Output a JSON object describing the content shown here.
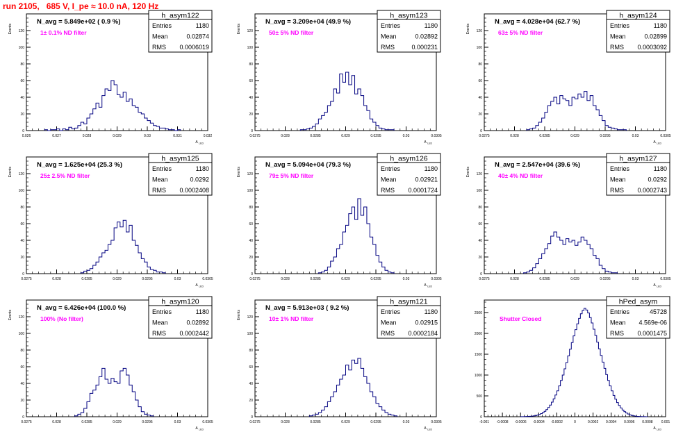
{
  "run_title": "run 2105,   685 V, I_pe ≈ 10.0 nA, 120 Hz",
  "colors": {
    "title": "#ff0000",
    "hist": "#000080",
    "annotation": "#ff00ff",
    "frame": "#000000"
  },
  "stats_labels": {
    "entries": "Entries",
    "mean": "Mean",
    "rms": "RMS"
  },
  "chart_data": [
    {
      "type": "bar",
      "name": "h_asym122",
      "xlabel": "A_LED",
      "ylabel": "Events",
      "xlim": [
        0.026,
        0.032
      ],
      "ylim": [
        0,
        140
      ],
      "xticks": [
        "0.026",
        "0.027",
        "0.028",
        "0.029",
        "0.03",
        "0.031",
        "0.032"
      ],
      "yticks": [
        "0",
        "20",
        "40",
        "60",
        "80",
        "100",
        "120"
      ],
      "nAvg": "N_avg = 5.849e+02 ( 0.9 %)",
      "filter": "1± 0.1% ND filter",
      "entries": "1180",
      "mean": "0.02874",
      "rms": "0.0006019",
      "bins_start": 0.0266,
      "bin_width": 0.0001,
      "values": [
        1,
        0,
        1,
        1,
        2,
        0,
        2,
        1,
        4,
        2,
        3,
        6,
        10,
        8,
        15,
        20,
        26,
        33,
        28,
        42,
        50,
        48,
        60,
        55,
        43,
        40,
        46,
        35,
        38,
        30,
        28,
        22,
        20,
        15,
        12,
        9,
        6,
        5,
        3,
        3,
        2,
        1,
        1,
        0,
        1
      ]
    },
    {
      "type": "bar",
      "name": "h_asym123",
      "xlabel": "A_LED",
      "ylabel": "Events",
      "xlim": [
        0.0275,
        0.0305
      ],
      "ylim": [
        0,
        140
      ],
      "xticks": [
        "0.0275",
        "0.028",
        "0.0285",
        "0.029",
        "0.0295",
        "0.03",
        "0.0305"
      ],
      "yticks": [
        "0",
        "20",
        "40",
        "60",
        "80",
        "100",
        "120"
      ],
      "nAvg": "N_avg = 3.209e+04 (49.9 %)",
      "filter": "50± 5% ND filter",
      "entries": "1180",
      "mean": "0.02892",
      "rms": "0.000231",
      "bins_start": 0.02825,
      "bin_width": 5e-05,
      "values": [
        1,
        1,
        2,
        3,
        5,
        8,
        14,
        18,
        22,
        30,
        35,
        50,
        45,
        68,
        58,
        70,
        55,
        66,
        44,
        50,
        42,
        30,
        24,
        14,
        10,
        6,
        3,
        2,
        1,
        1,
        1
      ]
    },
    {
      "type": "bar",
      "name": "h_asym124",
      "xlabel": "A_LED",
      "ylabel": "Events",
      "xlim": [
        0.0275,
        0.0305
      ],
      "ylim": [
        0,
        140
      ],
      "xticks": [
        "0.0275",
        "0.028",
        "0.0285",
        "0.029",
        "0.0295",
        "0.03",
        "0.0305"
      ],
      "yticks": [
        "0",
        "20",
        "40",
        "60",
        "80",
        "100",
        "120"
      ],
      "nAvg": "N_avg = 4.028e+04 (62.7 %)",
      "filter": "63± 5% ND filter",
      "entries": "1180",
      "mean": "0.02899",
      "rms": "0.0003092",
      "bins_start": 0.0282,
      "bin_width": 5e-05,
      "values": [
        1,
        2,
        3,
        6,
        10,
        15,
        22,
        30,
        35,
        40,
        32,
        42,
        38,
        36,
        30,
        40,
        38,
        44,
        40,
        47,
        36,
        42,
        30,
        25,
        18,
        12,
        6,
        4,
        3,
        2,
        1,
        1,
        1
      ]
    },
    {
      "type": "bar",
      "name": "h_asym125",
      "xlabel": "A_LED",
      "ylabel": "Events",
      "xlim": [
        0.0275,
        0.0305
      ],
      "ylim": [
        0,
        140
      ],
      "xticks": [
        "0.0275",
        "0.028",
        "0.0285",
        "0.029",
        "0.0295",
        "0.03",
        "0.0305"
      ],
      "yticks": [
        "0",
        "20",
        "40",
        "60",
        "80",
        "100",
        "120"
      ],
      "nAvg": "N_avg = 1.625e+04 (25.3 %)",
      "filter": "25± 2.5% ND filter",
      "entries": "1180",
      "mean": "0.0292",
      "rms": "0.0002408",
      "bins_start": 0.0284,
      "bin_width": 5e-05,
      "values": [
        1,
        3,
        4,
        6,
        10,
        14,
        20,
        25,
        28,
        35,
        40,
        55,
        62,
        56,
        64,
        50,
        58,
        40,
        34,
        25,
        18,
        14,
        8,
        5,
        4,
        2,
        2,
        1
      ]
    },
    {
      "type": "bar",
      "name": "h_asym126",
      "xlabel": "A_LED",
      "ylabel": "Events",
      "xlim": [
        0.0275,
        0.0305
      ],
      "ylim": [
        0,
        140
      ],
      "xticks": [
        "0.0275",
        "0.028",
        "0.0285",
        "0.029",
        "0.0295",
        "0.03",
        "0.0305"
      ],
      "yticks": [
        "0",
        "20",
        "40",
        "60",
        "80",
        "100",
        "120"
      ],
      "nAvg": "N_avg = 5.094e+04 (79.3 %)",
      "filter": "79± 5% ND filter",
      "entries": "1180",
      "mean": "0.02921",
      "rms": "0.0001724",
      "bins_start": 0.02855,
      "bin_width": 5e-05,
      "values": [
        1,
        2,
        4,
        8,
        15,
        20,
        30,
        35,
        50,
        58,
        72,
        80,
        65,
        90,
        70,
        80,
        60,
        44,
        35,
        22,
        14,
        8,
        4,
        2,
        1
      ]
    },
    {
      "type": "bar",
      "name": "h_asym127",
      "xlabel": "A_LED",
      "ylabel": "Events",
      "xlim": [
        0.0275,
        0.0305
      ],
      "ylim": [
        0,
        140
      ],
      "xticks": [
        "0.0275",
        "0.028",
        "0.0285",
        "0.029",
        "0.0295",
        "0.03",
        "0.0305"
      ],
      "yticks": [
        "0",
        "20",
        "40",
        "60",
        "80",
        "100",
        "120"
      ],
      "nAvg": "N_avg = 2.547e+04 (39.6 %)",
      "filter": "40± 4% ND filter",
      "entries": "1180",
      "mean": "0.0292",
      "rms": "0.0002743",
      "bins_start": 0.02815,
      "bin_width": 5e-05,
      "values": [
        1,
        2,
        4,
        7,
        12,
        18,
        24,
        30,
        36,
        45,
        50,
        44,
        40,
        35,
        42,
        38,
        40,
        34,
        38,
        44,
        40,
        35,
        30,
        22,
        18,
        10,
        6,
        3,
        2,
        1,
        1
      ]
    },
    {
      "type": "bar",
      "name": "h_asym120",
      "xlabel": "A_LED",
      "ylabel": "Events",
      "xlim": [
        0.0275,
        0.0305
      ],
      "ylim": [
        0,
        140
      ],
      "xticks": [
        "0.0275",
        "0.028",
        "0.0285",
        "0.029",
        "0.0295",
        "0.03",
        "0.0305"
      ],
      "yticks": [
        "0",
        "20",
        "40",
        "60",
        "80",
        "100",
        "120"
      ],
      "nAvg": "N_avg = 6.426e+04 (100.0 %)",
      "filter": "100% (No filter)",
      "entries": "1180",
      "mean": "0.02892",
      "rms": "0.0002442",
      "bins_start": 0.0283,
      "bin_width": 5e-05,
      "values": [
        1,
        3,
        5,
        10,
        18,
        28,
        32,
        38,
        48,
        58,
        45,
        40,
        46,
        42,
        40,
        55,
        58,
        50,
        38,
        30,
        20,
        12,
        6,
        3,
        2,
        1
      ]
    },
    {
      "type": "bar",
      "name": "h_asym121",
      "xlabel": "A_LED",
      "ylabel": "Events",
      "xlim": [
        0.0275,
        0.0305
      ],
      "ylim": [
        0,
        140
      ],
      "xticks": [
        "0.0275",
        "0.028",
        "0.0285",
        "0.029",
        "0.0295",
        "0.03",
        "0.0305"
      ],
      "yticks": [
        "0",
        "20",
        "40",
        "60",
        "80",
        "100",
        "120"
      ],
      "nAvg": "N_avg = 5.913e+03 ( 9.2 %)",
      "filter": "10± 1% ND filter",
      "entries": "1180",
      "mean": "0.02915",
      "rms": "0.0002184",
      "bins_start": 0.0284,
      "bin_width": 5e-05,
      "values": [
        1,
        2,
        3,
        5,
        8,
        12,
        18,
        24,
        30,
        38,
        45,
        50,
        62,
        56,
        68,
        64,
        70,
        58,
        48,
        40,
        30,
        24,
        16,
        12,
        8,
        5,
        3,
        2,
        1
      ]
    },
    {
      "type": "bar",
      "name": "hPed_asym",
      "xlabel": "A_LED",
      "ylabel": "",
      "xlim": [
        -0.001,
        0.001
      ],
      "ylim": [
        0,
        2800
      ],
      "xticks": [
        "-0.001",
        "-0.0008",
        "-0.0006",
        "-0.0004",
        "-0.0002",
        "0",
        "0.0002",
        "0.0004",
        "0.0006",
        "0.0008",
        "0.001"
      ],
      "yticks": [
        "0",
        "500",
        "1000",
        "1500",
        "2000",
        "2500"
      ],
      "nAvg": "",
      "filter": "Shutter Closed",
      "entries": "45728",
      "mean": "4.569e-06",
      "rms": "0.0001475",
      "bins_start": -0.0006,
      "bin_width": 2e-05,
      "values": [
        2,
        3,
        4,
        6,
        8,
        10,
        14,
        20,
        28,
        40,
        55,
        75,
        100,
        130,
        170,
        220,
        280,
        350,
        430,
        520,
        620,
        740,
        870,
        1000,
        1150,
        1300,
        1460,
        1620,
        1780,
        1940,
        2090,
        2230,
        2360,
        2470,
        2550,
        2600,
        2560,
        2490,
        2380,
        2250,
        2100,
        1950,
        1790,
        1630,
        1470,
        1310,
        1160,
        1010,
        870,
        740,
        620,
        510,
        420,
        340,
        270,
        210,
        160,
        120,
        90,
        65,
        45,
        30,
        20,
        14,
        9,
        6,
        4,
        3,
        2,
        1
      ]
    }
  ]
}
